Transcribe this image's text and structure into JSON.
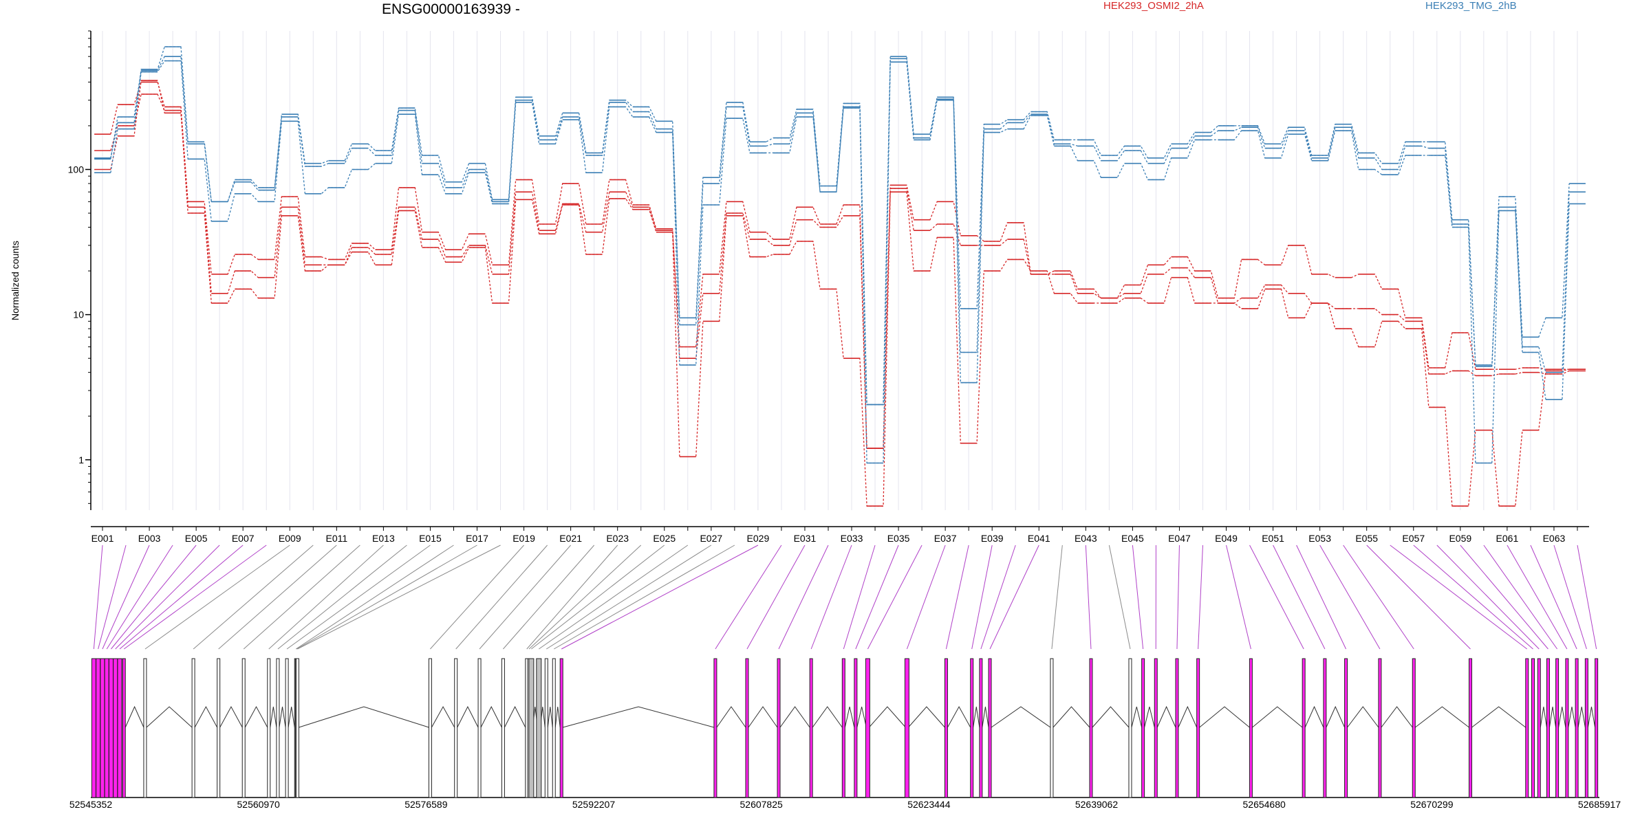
{
  "chart_data": {
    "type": "line",
    "title": "ENSG00000163939 -",
    "ylabel": "Normalized counts",
    "yscale": "log",
    "ylim": [
      0.45,
      900
    ],
    "yticks": [
      1,
      10,
      100
    ],
    "ytick_labels": [
      "1",
      "10",
      "100"
    ],
    "legend": [
      {
        "label": "HEK293_OSMI2_2hA",
        "color": "#d62728"
      },
      {
        "label": "HEK293_TMG_2hB",
        "color": "#3b7fb5"
      }
    ],
    "exon_labels": [
      "E001",
      "E003",
      "E005",
      "E007",
      "E009",
      "E011",
      "E013",
      "E015",
      "E017",
      "E019",
      "E021",
      "E023",
      "E025",
      "E027",
      "E029",
      "E031",
      "E033",
      "E035",
      "E037",
      "E039",
      "E041",
      "E043",
      "E045",
      "E047",
      "E049",
      "E051",
      "E053",
      "E055",
      "E057",
      "E059",
      "E061",
      "E063"
    ],
    "genome_axis_labels": [
      "52545352",
      "52560970",
      "52576589",
      "52592207",
      "52607825",
      "52623444",
      "52639062",
      "52654680",
      "52670299",
      "52685917"
    ],
    "genome_range": [
      52545352,
      52685917
    ],
    "series": [
      {
        "group": "HEK293_OSMI2_2hA",
        "color": "#d62728",
        "values": [
          175,
          280,
          400,
          270,
          60,
          19,
          26,
          24,
          65,
          25,
          24,
          31,
          28,
          75,
          37,
          28,
          36,
          22,
          85,
          42,
          80,
          42,
          85,
          57,
          39,
          6,
          19,
          60,
          37,
          33,
          55,
          42,
          57,
          1.2,
          78,
          45,
          60,
          35,
          32,
          43,
          19,
          20,
          15,
          13,
          16,
          22,
          25,
          20,
          13,
          24,
          22,
          30,
          19,
          18,
          19,
          15,
          9.5,
          4.3,
          7.5,
          4.2,
          4.2,
          4.3,
          4.2,
          4.2
        ]
      },
      {
        "group": "HEK293_OSMI2_2hA",
        "color": "#d62728",
        "values": [
          135,
          200,
          330,
          255,
          55,
          14,
          20,
          18,
          55,
          22,
          22,
          29,
          26,
          55,
          33,
          25,
          30,
          19,
          70,
          38,
          58,
          37,
          70,
          55,
          38,
          5,
          14,
          50,
          33,
          30,
          45,
          40,
          48,
          1.2,
          74,
          38,
          42,
          30,
          30,
          33,
          19,
          19,
          14,
          13,
          14,
          19,
          21,
          18,
          12,
          13,
          16,
          14,
          12,
          11,
          11,
          10,
          9,
          3.9,
          4.1,
          3.8,
          3.9,
          4.0,
          3.9,
          4.1
        ]
      },
      {
        "group": "HEK293_OSMI2_2hA",
        "color": "#d62728",
        "values": [
          100,
          170,
          410,
          245,
          50,
          12,
          15,
          13,
          48,
          20,
          22,
          27,
          22,
          52,
          29,
          23,
          29,
          12,
          62,
          36,
          57,
          26,
          63,
          53,
          37,
          1.05,
          9,
          48,
          25,
          26,
          32,
          15,
          5,
          0.48,
          70,
          20,
          34,
          1.3,
          20,
          24,
          20,
          14,
          12,
          12,
          13,
          12,
          18,
          12,
          12,
          11,
          15,
          9.5,
          12,
          8,
          6,
          9,
          8,
          2.3,
          0.48,
          1.6,
          0.48,
          1.6,
          4.1,
          4.2
        ]
      },
      {
        "group": "HEK293_TMG_2hB",
        "color": "#3b7fb5",
        "values": [
          120,
          210,
          490,
          700,
          155,
          60,
          85,
          75,
          240,
          110,
          115,
          150,
          135,
          265,
          125,
          82,
          110,
          62,
          315,
          170,
          245,
          130,
          300,
          270,
          215,
          9.5,
          88,
          290,
          155,
          165,
          260,
          77,
          285,
          2.4,
          600,
          175,
          315,
          11,
          205,
          220,
          250,
          160,
          160,
          125,
          145,
          120,
          150,
          180,
          200,
          200,
          150,
          195,
          125,
          205,
          130,
          110,
          155,
          155,
          45,
          4.5,
          65,
          7,
          9.5,
          80
        ]
      },
      {
        "group": "HEK293_TMG_2hB",
        "color": "#3b7fb5",
        "values": [
          118,
          230,
          480,
          600,
          150,
          60,
          82,
          72,
          230,
          105,
          110,
          140,
          125,
          255,
          110,
          75,
          100,
          60,
          300,
          160,
          230,
          125,
          290,
          250,
          190,
          8.5,
          80,
          270,
          145,
          150,
          245,
          70,
          270,
          2.4,
          580,
          165,
          305,
          5.5,
          190,
          210,
          240,
          150,
          145,
          115,
          135,
          110,
          140,
          170,
          185,
          195,
          140,
          185,
          120,
          195,
          120,
          100,
          145,
          140,
          42,
          4.4,
          55,
          6,
          4,
          70
        ]
      },
      {
        "group": "HEK293_TMG_2hB",
        "color": "#3b7fb5",
        "values": [
          95,
          190,
          470,
          560,
          118,
          44,
          68,
          60,
          215,
          68,
          75,
          100,
          110,
          240,
          92,
          68,
          95,
          58,
          290,
          150,
          220,
          95,
          270,
          230,
          180,
          4.5,
          57,
          225,
          130,
          130,
          230,
          70,
          265,
          0.95,
          550,
          160,
          300,
          3.4,
          180,
          190,
          235,
          145,
          115,
          88,
          110,
          85,
          120,
          160,
          160,
          185,
          120,
          175,
          115,
          185,
          100,
          92,
          125,
          125,
          40,
          0.95,
          52,
          5.5,
          2.6,
          58
        ]
      }
    ]
  }
}
